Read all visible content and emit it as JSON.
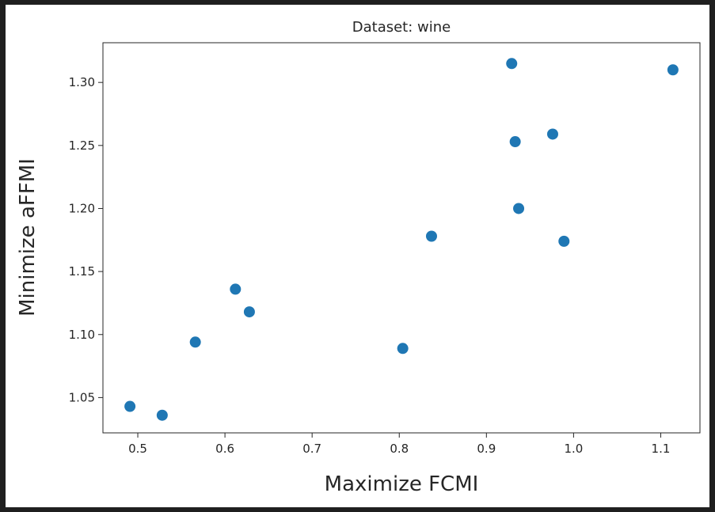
{
  "chart_data": {
    "type": "scatter",
    "title": "Dataset: wine",
    "xlabel": "Maximize FCMI",
    "ylabel": "Minimize aFFMI",
    "xlim": [
      0.46,
      1.145
    ],
    "ylim": [
      1.022,
      1.3315
    ],
    "xticks": [
      0.5,
      0.6,
      0.7,
      0.8,
      0.9,
      1.0,
      1.1
    ],
    "xtick_labels": [
      "0.5",
      "0.6",
      "0.7",
      "0.8",
      "0.9",
      "1.0",
      "1.1"
    ],
    "yticks": [
      1.05,
      1.1,
      1.15,
      1.2,
      1.25,
      1.3
    ],
    "ytick_labels": [
      "1.05",
      "1.10",
      "1.15",
      "1.20",
      "1.25",
      "1.30"
    ],
    "grid": false,
    "marker_color": "#1f77b4",
    "points": [
      {
        "x": 0.491,
        "y": 1.043
      },
      {
        "x": 0.528,
        "y": 1.036
      },
      {
        "x": 0.566,
        "y": 1.094
      },
      {
        "x": 0.612,
        "y": 1.136
      },
      {
        "x": 0.628,
        "y": 1.118
      },
      {
        "x": 0.804,
        "y": 1.089
      },
      {
        "x": 0.837,
        "y": 1.178
      },
      {
        "x": 0.929,
        "y": 1.315
      },
      {
        "x": 0.933,
        "y": 1.253
      },
      {
        "x": 0.937,
        "y": 1.2
      },
      {
        "x": 0.976,
        "y": 1.259
      },
      {
        "x": 0.989,
        "y": 1.174
      },
      {
        "x": 1.114,
        "y": 1.31
      }
    ]
  }
}
